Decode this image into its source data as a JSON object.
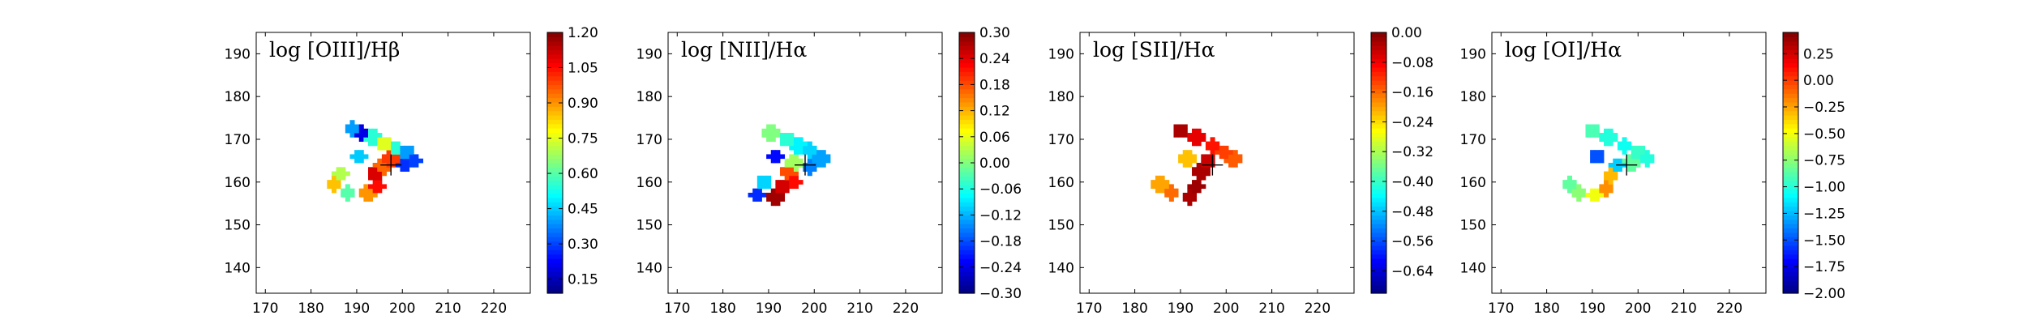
{
  "chart_data": [
    {
      "type": "heatmap",
      "title": "log [OIII]/Hβ",
      "xlabel": "",
      "ylabel": "",
      "xlim": [
        168,
        228
      ],
      "ylim": [
        134,
        195
      ],
      "xticks": [
        170,
        180,
        190,
        200,
        210,
        220
      ],
      "yticks": [
        140,
        150,
        160,
        170,
        180,
        190
      ],
      "colormap": "jet",
      "colorbar": {
        "min": 0.09,
        "max": 1.2,
        "ticks": [
          "0.15",
          "0.30",
          "0.45",
          "0.60",
          "0.75",
          "0.90",
          "1.05",
          "1.20"
        ]
      },
      "center_marker": {
        "x": 197.5,
        "y": 164
      },
      "grid": false,
      "regions": [
        {
          "x": 189,
          "y": 172.5,
          "value": 0.4
        },
        {
          "x": 191,
          "y": 171.5,
          "value": 0.2
        },
        {
          "x": 193.5,
          "y": 170.5,
          "value": 0.55
        },
        {
          "x": 196,
          "y": 169,
          "value": 0.75
        },
        {
          "x": 198.5,
          "y": 168,
          "value": 0.55
        },
        {
          "x": 201,
          "y": 167,
          "value": 0.4
        },
        {
          "x": 202.5,
          "y": 165,
          "value": 0.3
        },
        {
          "x": 200.5,
          "y": 164,
          "value": 0.28
        },
        {
          "x": 197.5,
          "y": 165.5,
          "value": 1.0
        },
        {
          "x": 195.5,
          "y": 163.5,
          "value": 0.95
        },
        {
          "x": 194,
          "y": 162,
          "value": 1.1
        },
        {
          "x": 194.5,
          "y": 159,
          "value": 1.05
        },
        {
          "x": 192.5,
          "y": 157.5,
          "value": 0.9
        },
        {
          "x": 188,
          "y": 157.5,
          "value": 0.6
        },
        {
          "x": 185,
          "y": 159.5,
          "value": 0.85
        },
        {
          "x": 186.5,
          "y": 162,
          "value": 0.7
        },
        {
          "x": 190.5,
          "y": 166,
          "value": 0.45
        }
      ]
    },
    {
      "type": "heatmap",
      "title": "log [NII]/Hα",
      "xlabel": "",
      "ylabel": "",
      "xlim": [
        168,
        228
      ],
      "ylim": [
        134,
        195
      ],
      "xticks": [
        170,
        180,
        190,
        200,
        210,
        220
      ],
      "yticks": [
        140,
        150,
        160,
        170,
        180,
        190
      ],
      "colormap": "jet",
      "colorbar": {
        "min": -0.3,
        "max": 0.3,
        "ticks": [
          "−0.30",
          "−0.24",
          "−0.18",
          "−0.12",
          "−0.06",
          "0.00",
          "0.06",
          "0.12",
          "0.18",
          "0.24",
          "0.30"
        ]
      },
      "center_marker": {
        "x": 198,
        "y": 164
      },
      "grid": false,
      "regions": [
        {
          "x": 190.5,
          "y": 171.5,
          "value": 0.0
        },
        {
          "x": 194,
          "y": 170,
          "value": -0.05
        },
        {
          "x": 196.5,
          "y": 168.5,
          "value": -0.08
        },
        {
          "x": 199,
          "y": 167.5,
          "value": -0.1
        },
        {
          "x": 201.5,
          "y": 165.5,
          "value": -0.13
        },
        {
          "x": 199,
          "y": 163.5,
          "value": -0.15
        },
        {
          "x": 195.5,
          "y": 164.5,
          "value": 0.02
        },
        {
          "x": 194.5,
          "y": 162.5,
          "value": 0.18
        },
        {
          "x": 193,
          "y": 159,
          "value": 0.25
        },
        {
          "x": 195.5,
          "y": 160,
          "value": 0.22
        },
        {
          "x": 191.5,
          "y": 156.5,
          "value": 0.28
        },
        {
          "x": 187.5,
          "y": 157,
          "value": -0.2
        },
        {
          "x": 189,
          "y": 160,
          "value": -0.1
        },
        {
          "x": 191.5,
          "y": 166,
          "value": -0.22
        }
      ]
    },
    {
      "type": "heatmap",
      "title": "log [SII]/Hα",
      "xlabel": "",
      "ylabel": "",
      "xlim": [
        168,
        228
      ],
      "ylim": [
        134,
        195
      ],
      "xticks": [
        170,
        180,
        190,
        200,
        210,
        220
      ],
      "yticks": [
        140,
        150,
        160,
        170,
        180,
        190
      ],
      "colormap": "jet",
      "colorbar": {
        "min": -0.7,
        "max": 0.0,
        "ticks": [
          "0.00",
          "−0.08",
          "−0.16",
          "−0.24",
          "−0.32",
          "−0.40",
          "−0.48",
          "−0.56",
          "−0.64"
        ]
      },
      "center_marker": {
        "x": 197,
        "y": 164
      },
      "grid": false,
      "regions": [
        {
          "x": 190,
          "y": 172,
          "value": -0.03
        },
        {
          "x": 193.5,
          "y": 170.5,
          "value": -0.07
        },
        {
          "x": 197,
          "y": 168.5,
          "value": -0.1
        },
        {
          "x": 199.5,
          "y": 167,
          "value": -0.13
        },
        {
          "x": 201.5,
          "y": 165.5,
          "value": -0.15
        },
        {
          "x": 196,
          "y": 165,
          "value": -0.05
        },
        {
          "x": 194.5,
          "y": 162.5,
          "value": -0.03
        },
        {
          "x": 193.5,
          "y": 159,
          "value": -0.02
        },
        {
          "x": 192,
          "y": 156.5,
          "value": -0.03
        },
        {
          "x": 188,
          "y": 157.5,
          "value": -0.16
        },
        {
          "x": 185.5,
          "y": 159.5,
          "value": -0.2
        },
        {
          "x": 191.5,
          "y": 165.5,
          "value": -0.22
        }
      ]
    },
    {
      "type": "heatmap",
      "title": "log [OI]/Hα",
      "xlabel": "",
      "ylabel": "",
      "xlim": [
        168,
        228
      ],
      "ylim": [
        134,
        195
      ],
      "xticks": [
        170,
        180,
        190,
        200,
        210,
        220
      ],
      "yticks": [
        140,
        150,
        160,
        170,
        180,
        190
      ],
      "colormap": "jet",
      "colorbar": {
        "min": -2.0,
        "max": 0.45,
        "ticks": [
          "0.25",
          "0.00",
          "−0.25",
          "−0.50",
          "−0.75",
          "−1.00",
          "−1.25",
          "−1.50",
          "−1.75",
          "−2.00"
        ]
      },
      "center_marker": {
        "x": 197.5,
        "y": 164
      },
      "grid": false,
      "regions": [
        {
          "x": 190,
          "y": 172,
          "value": -0.9
        },
        {
          "x": 193.5,
          "y": 170.5,
          "value": -1.0
        },
        {
          "x": 197,
          "y": 168.5,
          "value": -1.05
        },
        {
          "x": 200,
          "y": 167,
          "value": -0.95
        },
        {
          "x": 202,
          "y": 165.5,
          "value": -1.0
        },
        {
          "x": 198.5,
          "y": 164.5,
          "value": -0.85
        },
        {
          "x": 195.5,
          "y": 164,
          "value": -1.2
        },
        {
          "x": 194,
          "y": 161.5,
          "value": -0.3
        },
        {
          "x": 193,
          "y": 158.5,
          "value": -0.2
        },
        {
          "x": 190.5,
          "y": 157,
          "value": -0.5
        },
        {
          "x": 187,
          "y": 157.5,
          "value": -0.75
        },
        {
          "x": 185,
          "y": 159.5,
          "value": -0.85
        },
        {
          "x": 191,
          "y": 166,
          "value": -1.5
        }
      ]
    }
  ]
}
